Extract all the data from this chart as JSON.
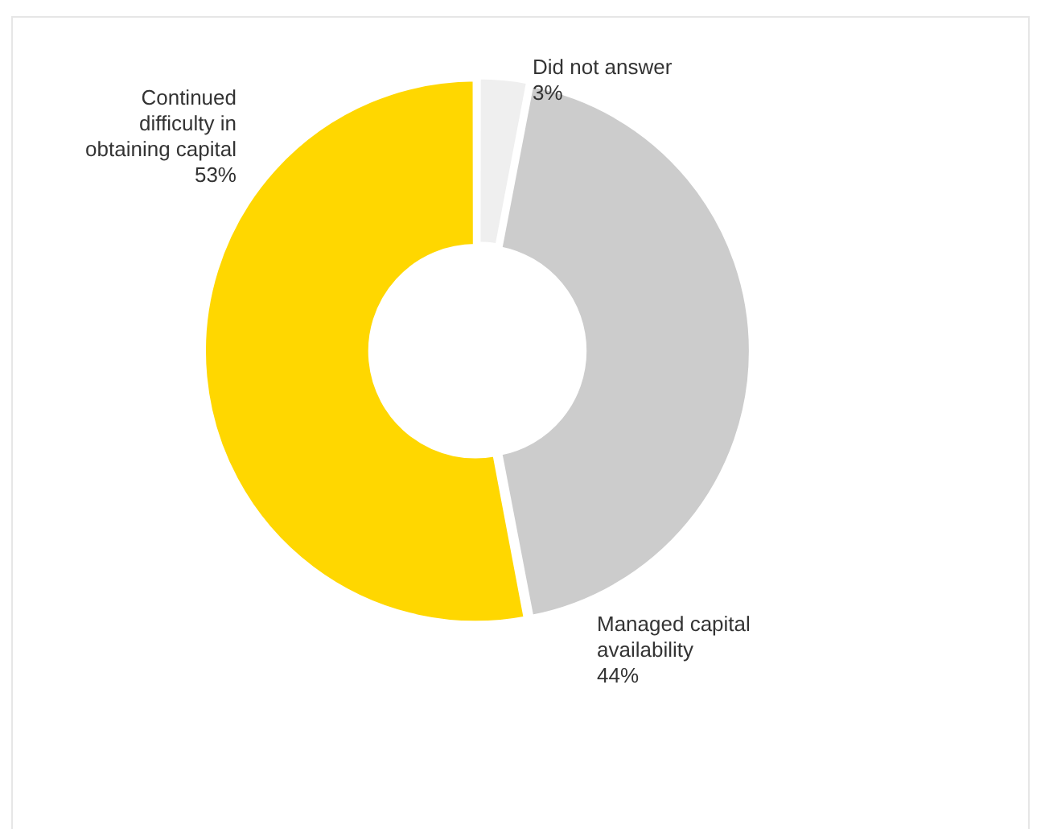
{
  "chart_data": {
    "type": "donut",
    "categories": [
      "Did not answer",
      "Managed capital availability",
      "Continued difficulty in obtaining capital"
    ],
    "values": [
      3,
      44,
      53
    ],
    "colors": [
      "#efefef",
      "#cccccc",
      "#ffd700"
    ],
    "value_labels": [
      "3%",
      "44%",
      "53%"
    ],
    "legend": false
  }
}
